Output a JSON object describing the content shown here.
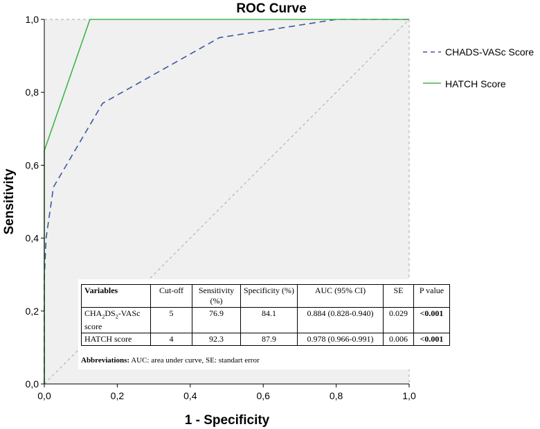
{
  "chart_data": {
    "type": "line",
    "title": "ROC Curve",
    "xlabel": "1 - Specificity",
    "ylabel": "Sensitivity",
    "xlim": [
      0,
      1
    ],
    "ylim": [
      0,
      1
    ],
    "xticks": [
      "0,0",
      "0,2",
      "0,4",
      "0,6",
      "0,8",
      "1,0"
    ],
    "yticks": [
      "0,0",
      "0,2",
      "0,4",
      "0,6",
      "0,8",
      "1,0"
    ],
    "legend_position": "right",
    "series": [
      {
        "name": "CHADS-VASc Score",
        "color": "#3b56a3",
        "style": "dashed",
        "x": [
          0,
          0,
          0.005,
          0.025,
          0.16,
          0.48,
          0.8,
          1.0
        ],
        "y": [
          0,
          0.29,
          0.4,
          0.54,
          0.77,
          0.95,
          1.0,
          1.0
        ]
      },
      {
        "name": "HATCH Score",
        "color": "#3fb54a",
        "style": "solid",
        "x": [
          0,
          0,
          0.125,
          1.0
        ],
        "y": [
          0,
          0.64,
          1.0,
          1.0
        ]
      }
    ],
    "reference_line": {
      "color": "#a8a8a8",
      "style": "dashed"
    }
  },
  "stats_table": {
    "headers": {
      "variables": "Variables",
      "cutoff": "Cut-off",
      "sensitivity": "Sensitivity (%)",
      "specificity": "Specificity (%)",
      "auc": "AUC (95% CI)",
      "se": "SE",
      "pvalue": "P value"
    },
    "rows": [
      {
        "var_main": "CHA",
        "var_sub1": "2",
        "var_mid": "DS",
        "var_sub2": "2",
        "var_end": "-VASc score",
        "cutoff": "5",
        "sensitivity": "76.9",
        "specificity": "84.1",
        "auc": "0.884 (0.828-0.940)",
        "se": "0.029",
        "pvalue": "<0.001"
      },
      {
        "variable": "HATCH score",
        "cutoff": "4",
        "sensitivity": "92.3",
        "specificity": "87.9",
        "auc": "0.978 (0.966-0.991)",
        "se": "0.006",
        "pvalue": "<0.001"
      }
    ],
    "abbrev_label": "Abbreviations:",
    "abbrev_text": " AUC: area under curve, SE: standart error"
  }
}
